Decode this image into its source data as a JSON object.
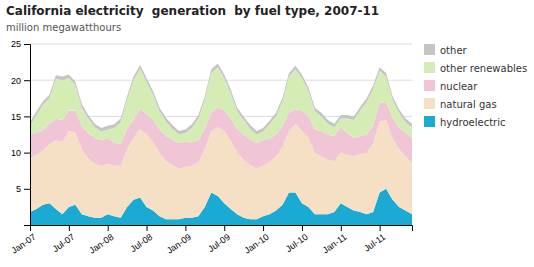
{
  "chart_data": {
    "type": "area",
    "stacked": true,
    "grid": true,
    "title": "California electricity  generation  by fuel type, 2007-11",
    "subtitle": "million megawatthours",
    "categories": [
      "Jan-07",
      null,
      null,
      null,
      null,
      null,
      "Jul-07",
      null,
      null,
      null,
      null,
      null,
      "Jan-08",
      null,
      null,
      null,
      null,
      null,
      "Jul-08",
      null,
      null,
      null,
      null,
      null,
      "Jan-09",
      null,
      null,
      null,
      null,
      null,
      "Jul-09",
      null,
      null,
      null,
      null,
      null,
      "Jan-10",
      null,
      null,
      null,
      null,
      null,
      "Jul-10",
      null,
      null,
      null,
      null,
      null,
      "Jan-11",
      null,
      null,
      null,
      null,
      null,
      "Jul-11",
      null,
      null,
      null,
      null,
      null
    ],
    "ylim": [
      0,
      25
    ],
    "yticks": [
      5,
      10,
      15,
      20,
      25
    ],
    "series": [
      {
        "name": "hydroelectric",
        "color": "#1aaad4",
        "values": [
          1.8,
          2.2,
          2.8,
          3.0,
          2.2,
          1.5,
          2.5,
          2.8,
          1.5,
          1.2,
          1.0,
          1.0,
          1.5,
          1.2,
          1.0,
          2.5,
          3.5,
          3.8,
          2.5,
          2.0,
          1.2,
          0.8,
          0.8,
          0.8,
          1.0,
          1.0,
          1.2,
          2.5,
          4.5,
          4.0,
          3.0,
          2.2,
          1.5,
          1.0,
          0.8,
          0.8,
          1.2,
          1.5,
          2.0,
          2.8,
          4.5,
          4.5,
          3.0,
          2.5,
          1.5,
          1.5,
          1.5,
          1.8,
          3.0,
          2.5,
          2.0,
          1.8,
          1.5,
          1.8,
          4.5,
          5.0,
          3.5,
          2.5,
          2.0,
          1.5
        ]
      },
      {
        "name": "natural gas",
        "color": "#f5dfc5",
        "values": [
          7.5,
          7.5,
          7.5,
          8.2,
          9.5,
          10.0,
          10.5,
          10.0,
          9.0,
          8.0,
          7.5,
          7.2,
          7.0,
          7.0,
          7.2,
          8.0,
          8.5,
          9.5,
          10.0,
          9.5,
          8.8,
          8.0,
          7.5,
          7.0,
          7.0,
          7.2,
          7.5,
          8.0,
          8.5,
          9.5,
          10.0,
          9.5,
          8.5,
          8.0,
          7.5,
          7.0,
          7.0,
          7.2,
          7.5,
          8.0,
          8.5,
          9.5,
          10.0,
          9.5,
          8.5,
          8.0,
          7.5,
          7.0,
          7.0,
          7.2,
          7.5,
          8.0,
          8.5,
          9.5,
          9.8,
          9.5,
          8.5,
          8.0,
          7.5,
          7.0
        ]
      },
      {
        "name": "nuclear",
        "color": "#f0c5d5",
        "values": [
          3.2,
          3.0,
          2.8,
          2.8,
          3.0,
          3.0,
          2.8,
          3.0,
          3.2,
          3.5,
          3.5,
          3.5,
          3.5,
          3.2,
          3.0,
          2.8,
          2.5,
          2.8,
          2.8,
          3.0,
          3.2,
          3.5,
          3.5,
          3.5,
          3.5,
          3.2,
          3.0,
          2.8,
          2.5,
          2.8,
          2.8,
          3.0,
          3.2,
          3.5,
          3.5,
          3.5,
          3.5,
          3.2,
          3.0,
          2.8,
          2.5,
          2.0,
          2.8,
          3.0,
          3.2,
          3.5,
          3.5,
          3.5,
          3.5,
          3.0,
          2.5,
          2.5,
          2.5,
          2.5,
          2.5,
          2.5,
          2.8,
          3.0,
          3.2,
          3.5
        ]
      },
      {
        "name": "other renewables",
        "color": "#d5edb5",
        "values": [
          1.2,
          2.5,
          3.5,
          3.5,
          5.5,
          5.5,
          4.5,
          3.5,
          2.5,
          2.0,
          1.5,
          1.2,
          1.2,
          2.0,
          3.0,
          4.0,
          5.5,
          5.5,
          4.5,
          3.5,
          2.5,
          2.0,
          1.5,
          1.2,
          1.2,
          2.0,
          3.0,
          4.0,
          5.5,
          5.5,
          4.5,
          3.5,
          2.5,
          2.0,
          1.5,
          1.2,
          1.2,
          2.0,
          2.5,
          3.5,
          5.0,
          5.5,
          4.5,
          3.5,
          2.5,
          2.0,
          1.5,
          1.2,
          1.2,
          2.0,
          2.5,
          3.5,
          4.5,
          5.0,
          4.5,
          3.5,
          2.5,
          2.0,
          1.5,
          1.5
        ]
      },
      {
        "name": "other",
        "color": "#c5c5c5",
        "values": [
          0.5,
          0.5,
          0.5,
          0.5,
          0.5,
          0.5,
          0.5,
          0.5,
          0.5,
          0.5,
          0.5,
          0.5,
          0.5,
          0.5,
          0.5,
          0.5,
          0.5,
          0.5,
          0.5,
          0.5,
          0.5,
          0.5,
          0.5,
          0.5,
          0.5,
          0.5,
          0.5,
          0.5,
          0.5,
          0.5,
          0.5,
          0.5,
          0.5,
          0.5,
          0.5,
          0.5,
          0.5,
          0.5,
          0.5,
          0.5,
          0.5,
          0.5,
          0.5,
          0.5,
          0.5,
          0.5,
          0.5,
          0.5,
          0.5,
          0.5,
          0.5,
          0.5,
          0.5,
          0.5,
          0.5,
          0.5,
          0.5,
          0.5,
          0.5,
          0.5
        ]
      }
    ]
  }
}
